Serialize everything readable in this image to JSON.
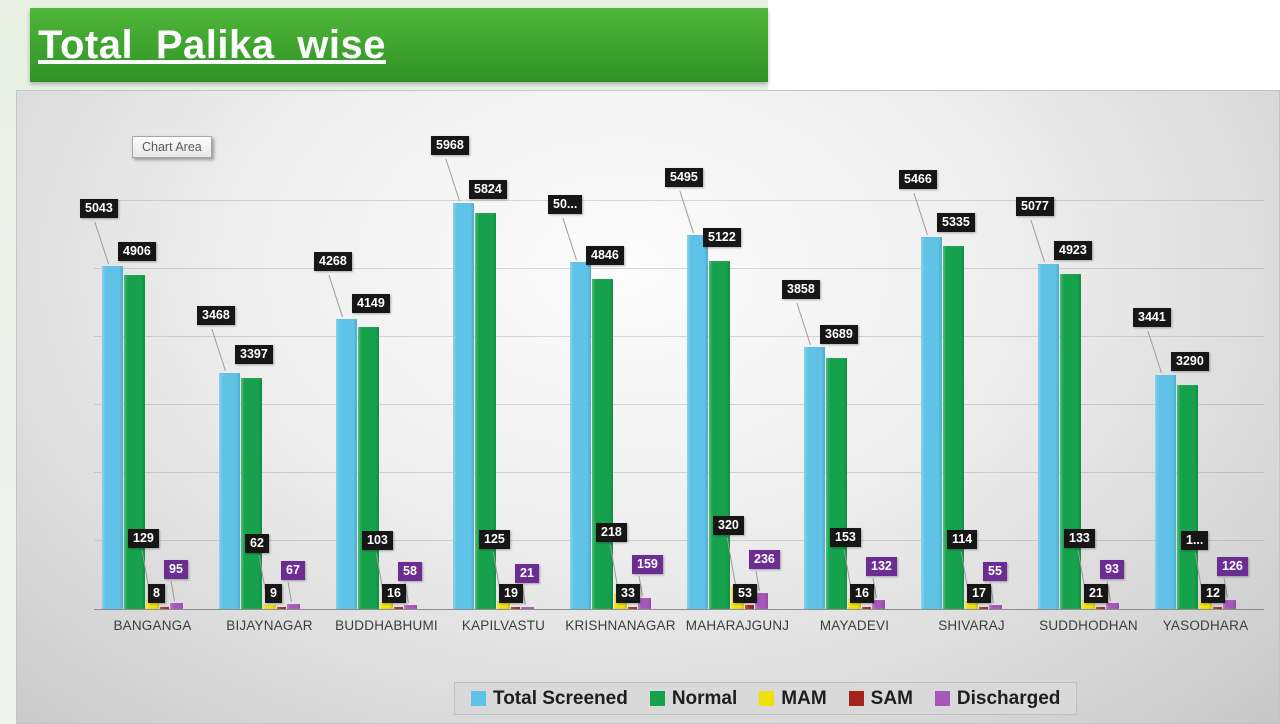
{
  "title_banner": {
    "text": "Total_Palika_wise"
  },
  "tooltip": {
    "text": "Chart Area"
  },
  "chart_data": {
    "type": "bar",
    "title": "Total_Palika_wise",
    "categories": [
      "BANGANGA",
      "BIJAYNAGAR",
      "BUDDHABHUMI",
      "KAPILVASTU",
      "KRISHNANAGAR",
      "MAHARAJGUNJ",
      "MAYADEVI",
      "SHIVARAJ",
      "SUDDHODHAN",
      "YASODHARA"
    ],
    "series": [
      {
        "name": "Total Screened",
        "color": "#5fc3e7",
        "values": [
          5043,
          3468,
          4268,
          5968,
          5100,
          5495,
          3858,
          5466,
          5077,
          3441
        ],
        "labels": [
          "5043",
          "3468",
          "4268",
          "5968",
          "50...",
          "5495",
          "3858",
          "5466",
          "5077",
          "3441"
        ]
      },
      {
        "name": "Normal",
        "color": "#16a24c",
        "values": [
          4906,
          3397,
          4149,
          5824,
          4846,
          5122,
          3689,
          5335,
          4923,
          3290
        ],
        "labels": [
          "4906",
          "3397",
          "4149",
          "5824",
          "4846",
          "5122",
          "3689",
          "5335",
          "4923",
          "3290"
        ]
      },
      {
        "name": "MAM",
        "color": "#f0e10d",
        "values": [
          129,
          62,
          103,
          125,
          218,
          320,
          153,
          114,
          133,
          100
        ],
        "labels": [
          "129",
          "62",
          "103",
          "125",
          "218",
          "320",
          "153",
          "114",
          "133",
          "1..."
        ]
      },
      {
        "name": "SAM",
        "color": "#a3241c",
        "values": [
          8,
          9,
          16,
          19,
          33,
          53,
          16,
          17,
          21,
          12
        ],
        "labels": [
          "8",
          "9",
          "16",
          "19",
          "33",
          "53",
          "16",
          "17",
          "21",
          "12"
        ]
      },
      {
        "name": "Discharged",
        "color": "#a757ba",
        "values": [
          95,
          67,
          58,
          21,
          159,
          236,
          132,
          55,
          93,
          126
        ],
        "labels": [
          "95",
          "67",
          "58",
          "21",
          "159",
          "236",
          "132",
          "55",
          "93",
          "126"
        ]
      }
    ],
    "ylim": [
      0,
      6000
    ],
    "gridline_step": 1000,
    "grid": true,
    "legend_position": "bottom",
    "label_style": {
      "default_bg": "#161616",
      "discharged_bg": "#6b2d91",
      "text": "#ffffff"
    }
  }
}
